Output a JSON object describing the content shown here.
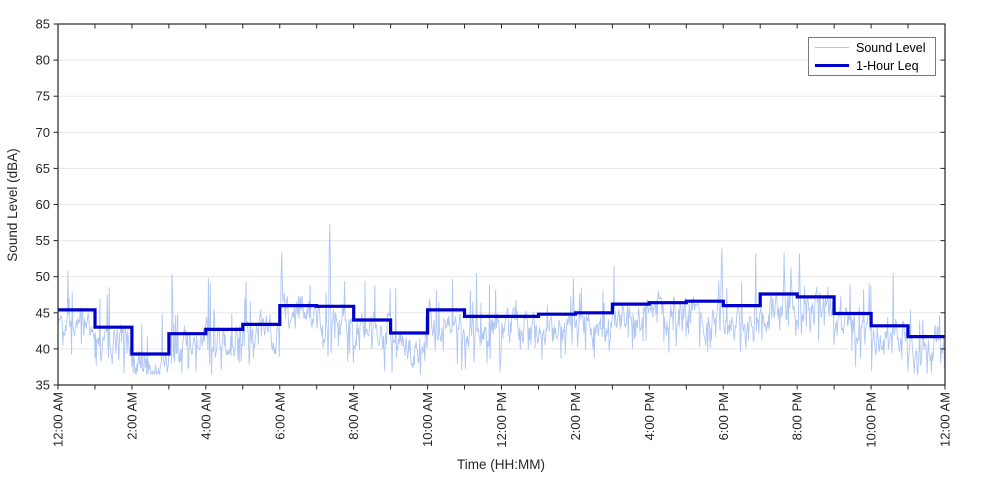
{
  "figure": {
    "background": "#ffffff"
  },
  "legend": {
    "position": "top-right",
    "border_color": "#787878",
    "background": "#ffffff",
    "items": [
      {
        "label": "Sound Level",
        "line_color": "#b0c7f2",
        "line_weight": "thin"
      },
      {
        "label": "1-Hour Leq",
        "line_color": "#0000cc",
        "line_weight": "thick"
      }
    ]
  },
  "colors": {
    "sound_trace": "#b0c7f2",
    "leq_line": "#0000cc",
    "grid": "#e8e8e8",
    "axis": "#262626",
    "tick_text": "#262626",
    "background": "#ffffff"
  },
  "chart_data": {
    "type": "line",
    "title": "",
    "xlabel": "Time (HH:MM)",
    "ylabel": "Sound Level (dBA)",
    "xlim_hours": [
      0,
      24
    ],
    "ylim": [
      35,
      85
    ],
    "grid": "horizontal-only",
    "legend_position": "top-right",
    "y_tick_values": [
      35,
      40,
      45,
      50,
      55,
      60,
      65,
      70,
      75,
      80,
      85
    ],
    "x_tick_hours": [
      0,
      2,
      4,
      6,
      8,
      10,
      12,
      14,
      16,
      18,
      20,
      22,
      24
    ],
    "x_tick_labels": [
      "12:00 AM",
      "2:00 AM",
      "4:00 AM",
      "6:00 AM",
      "8:00 AM",
      "10:00 AM",
      "12:00 PM",
      "2:00 PM",
      "4:00 PM",
      "6:00 PM",
      "8:00 PM",
      "10:00 PM",
      "12:00 AM"
    ],
    "x_minor_tick_every_hours": 1,
    "x_tick_label_rotation_deg": 90,
    "series": [
      {
        "name": "1-Hour Leq",
        "style": "stairs-hourly",
        "hour_starts": [
          0,
          1,
          2,
          3,
          4,
          5,
          6,
          7,
          8,
          9,
          10,
          11,
          12,
          13,
          14,
          15,
          16,
          17,
          18,
          19,
          20,
          21,
          22,
          23
        ],
        "values_dba": [
          45.4,
          43.0,
          39.3,
          42.1,
          42.7,
          43.4,
          46.0,
          45.9,
          44.0,
          42.2,
          45.4,
          44.5,
          44.5,
          44.8,
          45.0,
          46.2,
          46.4,
          46.6,
          46.0,
          47.6,
          47.2,
          44.9,
          43.2,
          41.7
        ]
      },
      {
        "name": "Sound Level",
        "style": "noisy-minute-trace",
        "approx_min_dba": 36.4,
        "approx_max_dba": 57.3,
        "notable_peaks": [
          {
            "hour": 6.05,
            "value_dba": 53.4
          },
          {
            "hour": 7.35,
            "value_dba": 57.3
          },
          {
            "hour": 17.95,
            "value_dba": 54.0
          },
          {
            "hour": 20.05,
            "value_dba": 53.2
          }
        ],
        "synth": {
          "seed": 1337,
          "points_per_hour": 60,
          "offset_dba": -1.4,
          "smooth": 0.7,
          "wander": 3.6,
          "spike_prob": 0.045,
          "spike_min": 2.5,
          "spike_max": 8.0,
          "dip_prob": 0.2,
          "dip_max": 4.3,
          "hard_max_dba": 56.2
        }
      }
    ]
  }
}
